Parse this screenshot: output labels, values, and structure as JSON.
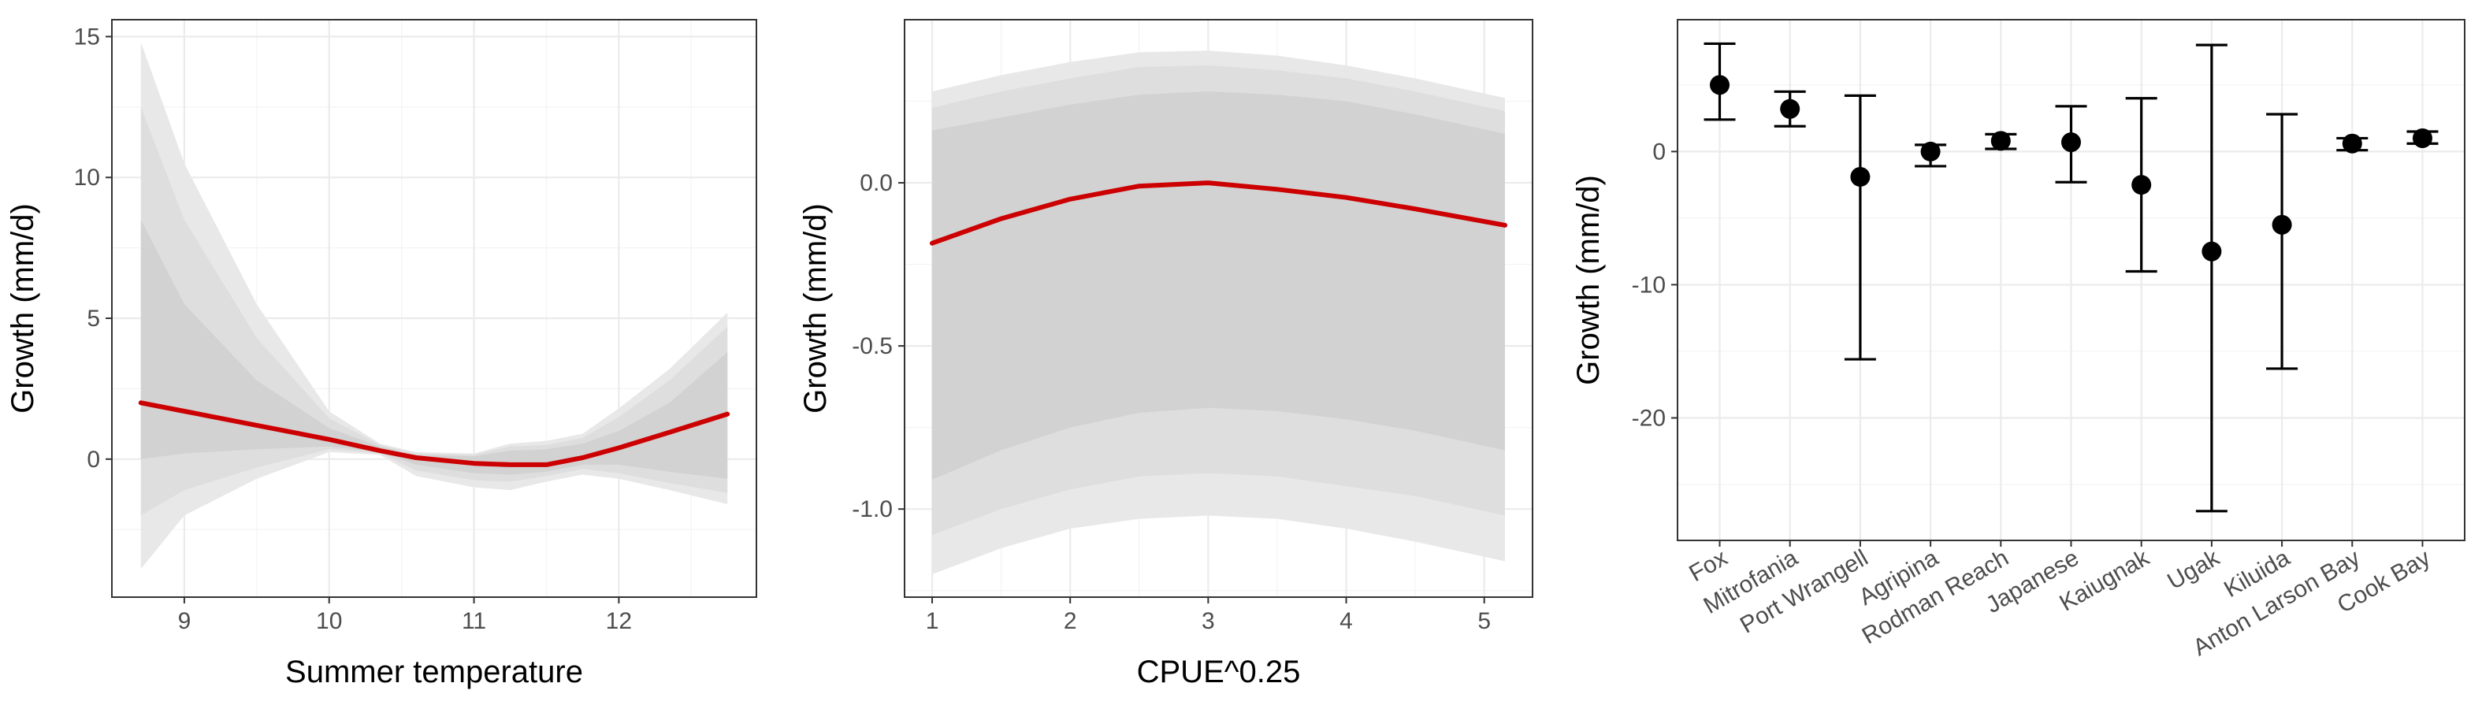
{
  "chart_data": [
    {
      "type": "line",
      "xlabel": "Summer temperature",
      "ylabel": "Growth (mm/d)",
      "xlim": [
        8.5,
        12.95
      ],
      "ylim": [
        -4.9,
        15.6
      ],
      "x_ticks": [
        9,
        10,
        11,
        12
      ],
      "y_ticks": [
        0,
        5,
        10,
        15
      ],
      "x_tick_labels": [
        "9",
        "10",
        "11",
        "12"
      ],
      "y_tick_labels": [
        "0",
        "5",
        "10",
        "15"
      ],
      "grid": true,
      "line_color": "#cc0000",
      "band_colors": [
        "#e8e8e8",
        "#dedede",
        "#d2d2d2"
      ],
      "x": [
        8.7,
        9.0,
        9.5,
        10.0,
        10.35,
        10.6,
        11.0,
        11.25,
        11.5,
        11.75,
        12.0,
        12.35,
        12.75
      ],
      "fit": [
        2.0,
        1.7,
        1.2,
        0.7,
        0.3,
        0.05,
        -0.15,
        -0.2,
        -0.2,
        0.05,
        0.4,
        0.95,
        1.6
      ],
      "bands": [
        {
          "lower": [
            -3.9,
            -2.0,
            -0.7,
            0.25,
            0.15,
            -0.6,
            -1.0,
            -1.1,
            -0.8,
            -0.55,
            -0.7,
            -1.1,
            -1.6
          ],
          "upper": [
            14.8,
            10.5,
            5.5,
            1.7,
            0.55,
            0.25,
            0.2,
            0.55,
            0.65,
            0.9,
            1.8,
            3.2,
            5.2
          ]
        },
        {
          "lower": [
            -2.0,
            -1.1,
            -0.3,
            0.35,
            0.2,
            -0.4,
            -0.75,
            -0.8,
            -0.6,
            -0.35,
            -0.5,
            -0.85,
            -1.2
          ],
          "upper": [
            12.5,
            8.5,
            4.3,
            1.45,
            0.5,
            0.2,
            0.15,
            0.45,
            0.5,
            0.75,
            1.5,
            2.8,
            4.7
          ]
        },
        {
          "lower": [
            0.0,
            0.2,
            0.35,
            0.45,
            0.25,
            -0.2,
            -0.5,
            -0.55,
            -0.45,
            -0.2,
            -0.2,
            -0.45,
            -0.7
          ],
          "upper": [
            8.5,
            5.5,
            2.8,
            1.1,
            0.45,
            0.15,
            0.1,
            0.3,
            0.35,
            0.55,
            1.0,
            2.0,
            3.8
          ]
        }
      ]
    },
    {
      "type": "line",
      "xlabel": "CPUE^0.25",
      "ylabel": "Growth (mm/d)",
      "xlim": [
        0.8,
        5.35
      ],
      "ylim": [
        -1.27,
        0.5
      ],
      "x_ticks": [
        1,
        2,
        3,
        4,
        5
      ],
      "y_ticks": [
        -1.0,
        -0.5,
        0.0
      ],
      "x_tick_labels": [
        "1",
        "2",
        "3",
        "4",
        "5"
      ],
      "y_tick_labels": [
        "-1.0",
        "-0.5",
        "0.0"
      ],
      "grid": true,
      "line_color": "#cc0000",
      "band_colors": [
        "#e8e8e8",
        "#dedede",
        "#d2d2d2"
      ],
      "x": [
        1.0,
        1.5,
        2.0,
        2.5,
        3.0,
        3.5,
        4.0,
        4.5,
        5.15
      ],
      "fit": [
        -0.185,
        -0.11,
        -0.05,
        -0.01,
        0.0,
        -0.02,
        -0.045,
        -0.08,
        -0.13
      ],
      "bands": [
        {
          "lower": [
            -1.2,
            -1.12,
            -1.06,
            -1.03,
            -1.02,
            -1.03,
            -1.06,
            -1.1,
            -1.16
          ],
          "upper": [
            0.28,
            0.33,
            0.37,
            0.4,
            0.405,
            0.39,
            0.36,
            0.32,
            0.26
          ]
        },
        {
          "lower": [
            -1.08,
            -1.0,
            -0.94,
            -0.9,
            -0.89,
            -0.9,
            -0.93,
            -0.96,
            -1.02
          ],
          "upper": [
            0.23,
            0.28,
            0.32,
            0.355,
            0.36,
            0.345,
            0.32,
            0.28,
            0.22
          ]
        },
        {
          "lower": [
            -0.91,
            -0.82,
            -0.75,
            -0.705,
            -0.69,
            -0.7,
            -0.725,
            -0.76,
            -0.82
          ],
          "upper": [
            0.16,
            0.2,
            0.24,
            0.27,
            0.28,
            0.27,
            0.25,
            0.21,
            0.15
          ]
        }
      ]
    },
    {
      "type": "scatter",
      "ylabel": "Growth (mm/d)",
      "ylim": [
        -29.2,
        9.9
      ],
      "y_ticks": [
        -20,
        -10,
        0
      ],
      "y_tick_labels": [
        "-20",
        "-10",
        "0"
      ],
      "grid": true,
      "categories": [
        "Fox",
        "Mitrofania",
        "Port Wrangell",
        "Agripina",
        "Rodman Reach",
        "Japanese",
        "Kaiugnak",
        "Ugak",
        "Kiluida",
        "Anton Larson Bay",
        "Cook Bay"
      ],
      "values": [
        5.0,
        3.2,
        -1.9,
        0.0,
        0.8,
        0.7,
        -2.5,
        -7.5,
        -5.5,
        0.6,
        1.0
      ],
      "lower": [
        2.4,
        1.9,
        -15.6,
        -1.1,
        0.2,
        -2.3,
        -9.0,
        -27.0,
        -16.3,
        0.1,
        0.6
      ],
      "upper": [
        8.1,
        4.5,
        4.2,
        0.5,
        1.3,
        3.4,
        4.0,
        8.0,
        2.8,
        1.0,
        1.5
      ]
    }
  ]
}
